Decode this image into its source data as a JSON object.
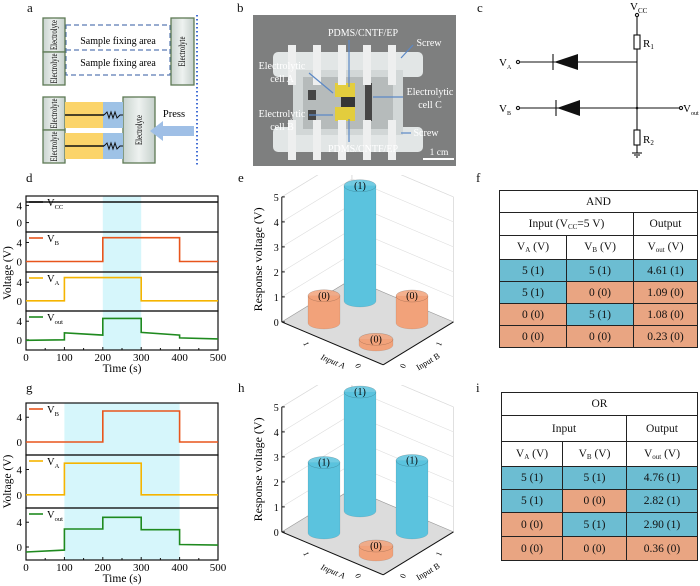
{
  "panel_labels": {
    "a": "a",
    "b": "b",
    "c": "c",
    "d": "d",
    "e": "e",
    "f": "f",
    "g": "g",
    "h": "h",
    "i": "i"
  },
  "colors": {
    "cell_one": "#6cbdd2",
    "cell_zero": "#e9a582",
    "vb": "#e8551c",
    "va": "#f5b400",
    "vout": "#1f8a1f",
    "vcc": "#111111",
    "shade": "#d6f6fb",
    "bar_one": "#5bc3de",
    "bar_zero": "#f2a27a"
  },
  "panel_a": {
    "electrolyte": "Electrolyte",
    "sample_area_1": "Sample fixing area",
    "sample_area_2": "Sample fixing area",
    "press": "Press"
  },
  "panel_b": {
    "pdms_top": "PDMS/CNTF/EP",
    "pdms_bottom": "PDMS/CNTF/EP",
    "screw_top": "Screw",
    "screw_bottom": "Screw",
    "cell_a_1": "Electrolytic",
    "cell_a_2": "cell A",
    "cell_b_1": "Electrolytic",
    "cell_b_2": "cell B",
    "cell_c_1": "Electrolytic",
    "cell_c_2": "cell C",
    "scale": "1 cm"
  },
  "panel_c": {
    "vcc": {
      "main": "V",
      "sub": "CC"
    },
    "va": {
      "main": "V",
      "sub": "A"
    },
    "vb": {
      "main": "V",
      "sub": "B"
    },
    "vout": {
      "main": "V",
      "sub": "out"
    },
    "r1": {
      "main": "R",
      "sub": "1"
    },
    "r2": {
      "main": "R",
      "sub": "2"
    }
  },
  "chart_data": [
    {
      "panel": "d",
      "type": "line",
      "xlabel": "Time (s)",
      "ylabel": "Voltage (V)",
      "xlim": [
        0,
        500
      ],
      "xticks": [
        0,
        100,
        200,
        300,
        400,
        500
      ],
      "ylim": [
        -2.2,
        6.2
      ],
      "yticks": [
        0,
        4
      ],
      "highlight": [
        200,
        300
      ],
      "series": [
        {
          "name": "VCC",
          "main": "V",
          "sub": "CC",
          "color": "#111111",
          "points": [
            [
              0,
              4.8
            ],
            [
              500,
              4.8
            ]
          ]
        },
        {
          "name": "VB",
          "main": "V",
          "sub": "B",
          "color": "#e8551c",
          "points": [
            [
              0,
              0
            ],
            [
              200,
              0
            ],
            [
              200,
              5
            ],
            [
              400,
              5
            ],
            [
              400,
              0
            ],
            [
              500,
              0
            ]
          ]
        },
        {
          "name": "VA",
          "main": "V",
          "sub": "A",
          "color": "#f5b400",
          "points": [
            [
              0,
              0
            ],
            [
              100,
              0
            ],
            [
              100,
              5
            ],
            [
              300,
              5
            ],
            [
              300,
              0
            ],
            [
              500,
              0
            ]
          ]
        },
        {
          "name": "Vout",
          "main": "V",
          "sub": "out",
          "color": "#1f8a1f",
          "points": [
            [
              0,
              -0.1
            ],
            [
              100,
              0
            ],
            [
              100,
              1.5
            ],
            [
              200,
              1.0
            ],
            [
              200,
              4.6
            ],
            [
              300,
              4.6
            ],
            [
              300,
              1.6
            ],
            [
              400,
              1.0
            ],
            [
              400,
              0.4
            ],
            [
              500,
              0.2
            ]
          ]
        }
      ]
    },
    {
      "panel": "e",
      "type": "bar3d",
      "title": "AND",
      "zlabel": "Response voltage (V)",
      "xlabel": "Input A",
      "ylabel": "Input B",
      "zlim": [
        0,
        5
      ],
      "zticks": [
        0,
        1,
        2,
        3,
        4,
        5
      ],
      "a_ticks": [
        "1",
        "0"
      ],
      "b_ticks": [
        "0",
        "1"
      ],
      "bars": [
        {
          "a": 1,
          "b": 1,
          "value": 4.61,
          "label": "(1)"
        },
        {
          "a": 1,
          "b": 0,
          "value": 1.09,
          "label": "(0)"
        },
        {
          "a": 0,
          "b": 1,
          "value": 1.08,
          "label": "(0)"
        },
        {
          "a": 0,
          "b": 0,
          "value": 0.23,
          "label": "(0)"
        }
      ]
    },
    {
      "panel": "g",
      "type": "line",
      "xlabel": "Time (s)",
      "ylabel": "Voltage (V)",
      "xlim": [
        0,
        500
      ],
      "xticks": [
        0,
        100,
        200,
        300,
        400,
        500
      ],
      "ylim": [
        -2.1,
        6.3
      ],
      "yticks": [
        0,
        4
      ],
      "highlight": [
        100,
        400
      ],
      "series": [
        {
          "name": "VB",
          "main": "V",
          "sub": "B",
          "color": "#e8551c",
          "points": [
            [
              0,
              0
            ],
            [
              200,
              0
            ],
            [
              200,
              5
            ],
            [
              400,
              5
            ],
            [
              400,
              0
            ],
            [
              500,
              0
            ]
          ]
        },
        {
          "name": "VA",
          "main": "V",
          "sub": "A",
          "color": "#f5b400",
          "points": [
            [
              0,
              0
            ],
            [
              100,
              0
            ],
            [
              100,
              5
            ],
            [
              300,
              5
            ],
            [
              300,
              0
            ],
            [
              500,
              0
            ]
          ]
        },
        {
          "name": "Vout",
          "main": "V",
          "sub": "out",
          "color": "#1f8a1f",
          "points": [
            [
              0,
              -0.8
            ],
            [
              100,
              -0.5
            ],
            [
              100,
              2.9
            ],
            [
              200,
              2.9
            ],
            [
              200,
              4.8
            ],
            [
              300,
              4.8
            ],
            [
              300,
              2.8
            ],
            [
              400,
              2.8
            ],
            [
              400,
              0.4
            ],
            [
              500,
              0.3
            ]
          ]
        }
      ]
    },
    {
      "panel": "h",
      "type": "bar3d",
      "title": "OR",
      "zlabel": "Response voltage (V)",
      "xlabel": "Input A",
      "ylabel": "Input B",
      "zlim": [
        0,
        5
      ],
      "zticks": [
        0,
        1,
        2,
        3,
        4,
        5
      ],
      "a_ticks": [
        "1",
        "0"
      ],
      "b_ticks": [
        "0",
        "1"
      ],
      "bars": [
        {
          "a": 1,
          "b": 1,
          "value": 4.76,
          "label": "(1)"
        },
        {
          "a": 1,
          "b": 0,
          "value": 2.82,
          "label": "(1)"
        },
        {
          "a": 0,
          "b": 1,
          "value": 2.9,
          "label": "(1)"
        },
        {
          "a": 0,
          "b": 0,
          "value": 0.36,
          "label": "(0)"
        }
      ]
    }
  ],
  "table_f": {
    "title": "AND",
    "input_main": "Input (V",
    "input_sub": "CC",
    "input_rest": "=5 V)",
    "output": "Output",
    "cols": [
      {
        "main": "V",
        "sub": "A",
        "unit": " (V)"
      },
      {
        "main": "V",
        "sub": "B",
        "unit": " (V)"
      },
      {
        "main": "V",
        "sub": "out",
        "unit": " (V)"
      }
    ],
    "rows": [
      {
        "va": "5 (1)",
        "vb": "5 (1)",
        "vout": "4.61 (1)"
      },
      {
        "va": "5 (1)",
        "vb": "0 (0)",
        "vout": "1.09 (0)"
      },
      {
        "va": "0 (0)",
        "vb": "5 (1)",
        "vout": "1.08 (0)"
      },
      {
        "va": "0 (0)",
        "vb": "0 (0)",
        "vout": "0.23 (0)"
      }
    ]
  },
  "table_i": {
    "title": "OR",
    "input": "Input",
    "output": "Output",
    "cols": [
      {
        "main": "V",
        "sub": "A",
        "unit": " (V)"
      },
      {
        "main": "V",
        "sub": "B",
        "unit": " (V)"
      },
      {
        "main": "V",
        "sub": "out",
        "unit": " (V)"
      }
    ],
    "rows": [
      {
        "va": "5 (1)",
        "vb": "5 (1)",
        "vout": "4.76 (1)"
      },
      {
        "va": "5 (1)",
        "vb": "0 (0)",
        "vout": "2.82 (1)"
      },
      {
        "va": "0 (0)",
        "vb": "5 (1)",
        "vout": "2.90 (1)"
      },
      {
        "va": "0 (0)",
        "vb": "0 (0)",
        "vout": "0.36 (0)"
      }
    ]
  }
}
